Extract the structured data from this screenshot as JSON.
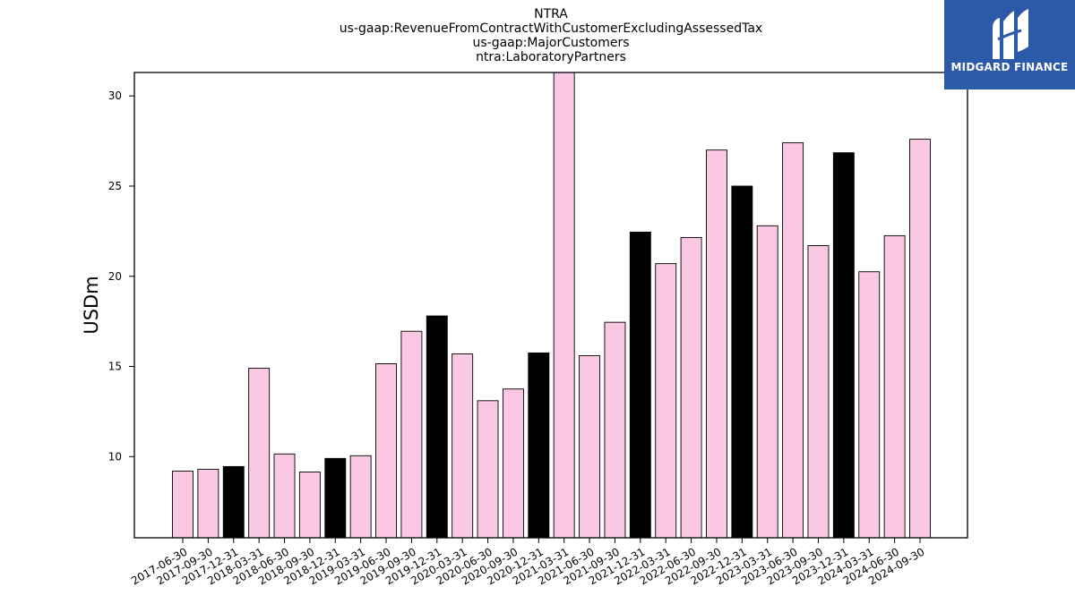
{
  "chart_data": {
    "type": "bar",
    "title_lines": [
      "NTRA",
      "us-gaap:RevenueFromContractWithCustomerExcludingAssessedTax",
      "us-gaap:MajorCustomers",
      "ntra:LaboratoryPartners"
    ],
    "xlabel": "",
    "ylabel": "USDm",
    "ylim": [
      5.5,
      31.3
    ],
    "yticks": [
      10,
      15,
      20,
      25,
      30
    ],
    "grid": false,
    "categories": [
      "2017-06-30",
      "2017-09-30",
      "2017-12-31",
      "2018-03-31",
      "2018-06-30",
      "2018-09-30",
      "2018-12-31",
      "2019-03-31",
      "2019-06-30",
      "2019-09-30",
      "2019-12-31",
      "2020-03-31",
      "2020-06-30",
      "2020-09-30",
      "2020-12-31",
      "2021-03-31",
      "2021-06-30",
      "2021-09-30",
      "2021-12-31",
      "2022-03-31",
      "2022-06-30",
      "2022-09-30",
      "2022-12-31",
      "2023-03-31",
      "2023-06-30",
      "2023-09-30",
      "2023-12-31",
      "2024-03-31",
      "2024-06-30",
      "2024-09-30"
    ],
    "values": [
      9.2,
      9.3,
      9.45,
      14.9,
      10.15,
      9.15,
      9.9,
      10.05,
      15.15,
      16.95,
      17.8,
      15.7,
      13.1,
      13.75,
      15.75,
      31.3,
      15.6,
      17.45,
      22.45,
      20.7,
      22.15,
      27.0,
      25.0,
      22.8,
      27.4,
      21.7,
      26.85,
      20.25,
      22.25,
      27.6
    ],
    "bar_colors": [
      "#fbc8e3",
      "#fbc8e3",
      "#000000",
      "#fbc8e3",
      "#fbc8e3",
      "#fbc8e3",
      "#000000",
      "#fbc8e3",
      "#fbc8e3",
      "#fbc8e3",
      "#000000",
      "#fbc8e3",
      "#fbc8e3",
      "#fbc8e3",
      "#000000",
      "#fbc8e3",
      "#fbc8e3",
      "#fbc8e3",
      "#000000",
      "#fbc8e3",
      "#fbc8e3",
      "#fbc8e3",
      "#000000",
      "#fbc8e3",
      "#fbc8e3",
      "#fbc8e3",
      "#000000",
      "#fbc8e3",
      "#fbc8e3",
      "#fbc8e3"
    ]
  },
  "logo": {
    "text": "MIDGARD FINANCE",
    "background": "#2d5aa8"
  }
}
